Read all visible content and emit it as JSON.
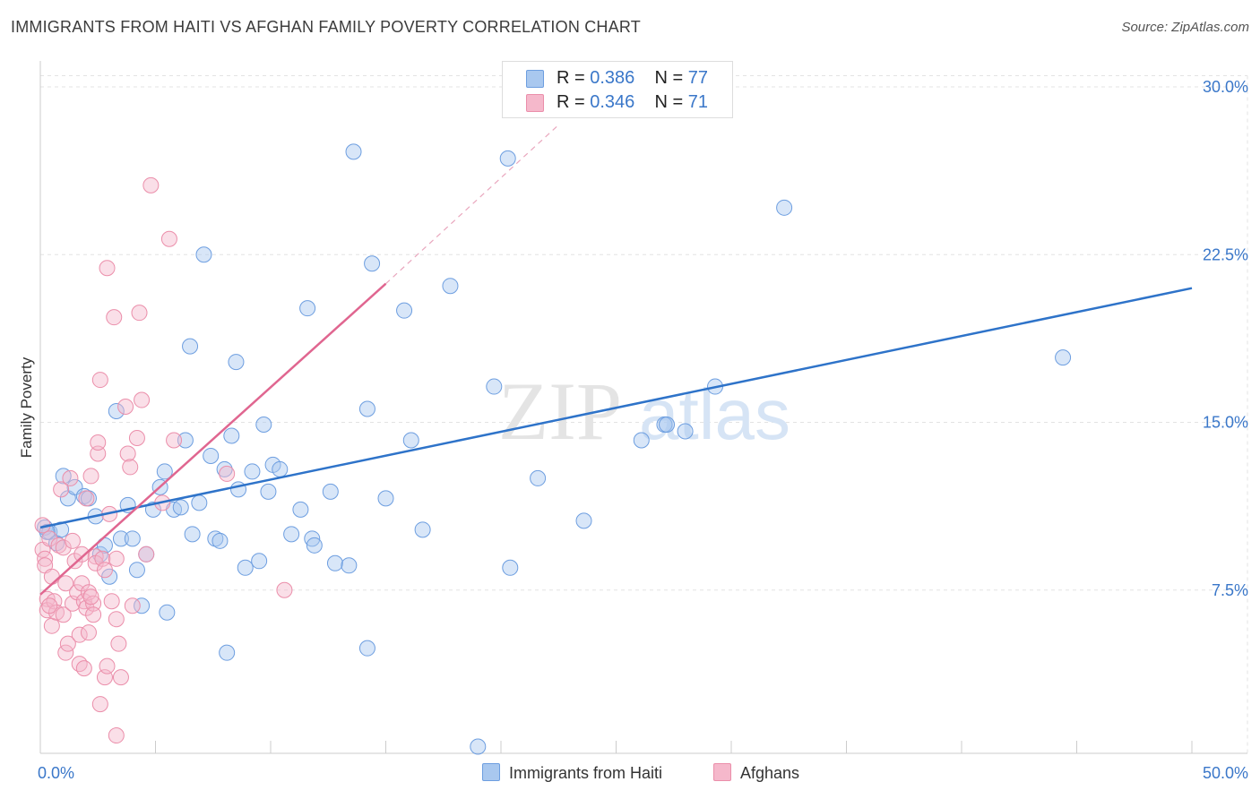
{
  "header": {
    "title": "IMMIGRANTS FROM HAITI VS AFGHAN FAMILY POVERTY CORRELATION CHART",
    "source": "Source: ZipAtlas.com"
  },
  "watermark": {
    "zip": "ZIP",
    "atlas": "atlas"
  },
  "legend_top": {
    "rows": [
      {
        "r_label": "R = ",
        "r_value": "0.386",
        "n_label": "N = ",
        "n_value": "77"
      },
      {
        "r_label": "R = ",
        "r_value": "0.346",
        "n_label": "N = ",
        "n_value": "71"
      }
    ]
  },
  "legend_bottom": {
    "series_1": "Immigrants from Haiti",
    "series_2": "Afghans"
  },
  "colors": {
    "haiti_fill": "#a9c8ef",
    "haiti_stroke": "#6d9ee0",
    "haiti_line": "#2e73c9",
    "afghan_fill": "#f5b8cb",
    "afghan_stroke": "#eb8eaa",
    "afghan_line": "#e06690",
    "tick_label": "#3a77c9",
    "grid": "#e3e3e3"
  },
  "chart_data": {
    "type": "scatter",
    "title": "IMMIGRANTS FROM HAITI VS AFGHAN FAMILY POVERTY CORRELATION CHART",
    "xlabel": "",
    "ylabel": "Family Poverty",
    "xlim": [
      0,
      50
    ],
    "ylim": [
      0,
      30.5
    ],
    "x_ticks": [
      0,
      5,
      10,
      15,
      20,
      25,
      30,
      35,
      40,
      45,
      50
    ],
    "x_tick_labels": {
      "0": "0.0%",
      "50": "50.0%"
    },
    "y_ticks": [
      7.5,
      15.0,
      22.5,
      30.0
    ],
    "y_tick_labels": [
      "7.5%",
      "15.0%",
      "22.5%",
      "30.0%"
    ],
    "grid": true,
    "series": [
      {
        "name": "Immigrants from Haiti",
        "R": 0.386,
        "N": 77,
        "trend": {
          "x": [
            0,
            50
          ],
          "y": [
            10.3,
            21.0
          ],
          "style": "solid"
        },
        "points": [
          [
            0.2,
            10.3
          ],
          [
            0.4,
            10.1
          ],
          [
            0.7,
            9.6
          ],
          [
            0.9,
            10.2
          ],
          [
            1.0,
            12.6
          ],
          [
            1.2,
            11.6
          ],
          [
            1.5,
            12.1
          ],
          [
            1.9,
            11.7
          ],
          [
            2.1,
            11.6
          ],
          [
            2.4,
            10.8
          ],
          [
            2.6,
            9.1
          ],
          [
            2.8,
            9.5
          ],
          [
            3.0,
            8.1
          ],
          [
            3.3,
            15.5
          ],
          [
            3.5,
            9.8
          ],
          [
            3.8,
            11.3
          ],
          [
            4.0,
            9.8
          ],
          [
            4.2,
            8.4
          ],
          [
            4.4,
            6.8
          ],
          [
            4.6,
            9.1
          ],
          [
            4.9,
            11.1
          ],
          [
            5.2,
            12.1
          ],
          [
            5.4,
            12.8
          ],
          [
            5.5,
            6.5
          ],
          [
            5.8,
            11.1
          ],
          [
            6.1,
            11.2
          ],
          [
            6.3,
            14.2
          ],
          [
            6.5,
            18.4
          ],
          [
            6.6,
            10.0
          ],
          [
            6.9,
            11.4
          ],
          [
            7.1,
            22.5
          ],
          [
            7.4,
            13.5
          ],
          [
            7.6,
            9.8
          ],
          [
            7.8,
            9.7
          ],
          [
            8.0,
            12.9
          ],
          [
            8.1,
            4.7
          ],
          [
            8.3,
            14.4
          ],
          [
            8.5,
            17.7
          ],
          [
            8.6,
            12.0
          ],
          [
            8.9,
            8.5
          ],
          [
            9.2,
            12.8
          ],
          [
            9.5,
            8.8
          ],
          [
            9.7,
            14.9
          ],
          [
            9.9,
            11.9
          ],
          [
            10.1,
            13.1
          ],
          [
            10.4,
            12.9
          ],
          [
            10.9,
            10.0
          ],
          [
            11.3,
            11.1
          ],
          [
            11.6,
            20.1
          ],
          [
            11.8,
            9.8
          ],
          [
            11.9,
            9.5
          ],
          [
            12.6,
            11.9
          ],
          [
            12.8,
            8.7
          ],
          [
            13.4,
            8.6
          ],
          [
            13.6,
            27.1
          ],
          [
            14.2,
            15.6
          ],
          [
            14.2,
            4.9
          ],
          [
            14.4,
            22.1
          ],
          [
            15.0,
            11.6
          ],
          [
            15.8,
            20.0
          ],
          [
            16.1,
            14.2
          ],
          [
            16.6,
            10.2
          ],
          [
            17.8,
            21.1
          ],
          [
            19.0,
            0.5
          ],
          [
            19.7,
            16.6
          ],
          [
            20.3,
            26.8
          ],
          [
            20.4,
            8.5
          ],
          [
            21.6,
            12.5
          ],
          [
            23.6,
            10.6
          ],
          [
            26.1,
            14.2
          ],
          [
            27.1,
            14.9
          ],
          [
            27.2,
            14.9
          ],
          [
            28.0,
            14.6
          ],
          [
            29.3,
            16.6
          ],
          [
            32.3,
            24.6
          ],
          [
            44.4,
            17.9
          ],
          [
            0.3,
            10.1
          ]
        ]
      },
      {
        "name": "Afghans",
        "R": 0.346,
        "N": 71,
        "trend": {
          "x": [
            0,
            15
          ],
          "y": [
            7.3,
            21.2
          ],
          "style": "solid",
          "dashed_extension": {
            "x": [
              15,
              22.5
            ],
            "y": [
              21.2,
              28.3
            ]
          }
        },
        "points": [
          [
            0.1,
            10.4
          ],
          [
            0.1,
            9.3
          ],
          [
            0.2,
            8.9
          ],
          [
            0.2,
            8.6
          ],
          [
            0.3,
            7.1
          ],
          [
            0.3,
            6.6
          ],
          [
            0.4,
            9.8
          ],
          [
            0.5,
            8.1
          ],
          [
            0.5,
            5.9
          ],
          [
            0.6,
            7.0
          ],
          [
            0.7,
            6.5
          ],
          [
            0.8,
            9.5
          ],
          [
            0.9,
            12.0
          ],
          [
            1.0,
            9.4
          ],
          [
            1.0,
            6.4
          ],
          [
            1.1,
            7.8
          ],
          [
            1.1,
            4.7
          ],
          [
            1.2,
            5.1
          ],
          [
            1.3,
            12.5
          ],
          [
            1.4,
            9.7
          ],
          [
            1.4,
            6.9
          ],
          [
            1.5,
            8.8
          ],
          [
            1.6,
            7.4
          ],
          [
            1.7,
            5.5
          ],
          [
            1.7,
            4.2
          ],
          [
            1.8,
            9.1
          ],
          [
            1.8,
            7.8
          ],
          [
            1.9,
            7.0
          ],
          [
            1.9,
            4.0
          ],
          [
            2.0,
            11.6
          ],
          [
            2.0,
            6.7
          ],
          [
            2.1,
            5.6
          ],
          [
            2.1,
            7.4
          ],
          [
            2.2,
            12.6
          ],
          [
            2.3,
            6.9
          ],
          [
            2.3,
            6.4
          ],
          [
            2.4,
            9.0
          ],
          [
            2.4,
            8.7
          ],
          [
            2.5,
            13.6
          ],
          [
            2.5,
            14.1
          ],
          [
            2.6,
            16.9
          ],
          [
            2.6,
            2.4
          ],
          [
            2.7,
            8.9
          ],
          [
            2.8,
            3.6
          ],
          [
            2.8,
            8.4
          ],
          [
            2.9,
            21.9
          ],
          [
            2.9,
            4.1
          ],
          [
            3.0,
            10.9
          ],
          [
            3.1,
            7.0
          ],
          [
            3.2,
            19.7
          ],
          [
            3.3,
            8.9
          ],
          [
            3.3,
            6.2
          ],
          [
            3.4,
            5.1
          ],
          [
            3.5,
            3.6
          ],
          [
            3.7,
            15.7
          ],
          [
            3.8,
            13.6
          ],
          [
            3.9,
            13.0
          ],
          [
            4.0,
            6.8
          ],
          [
            4.2,
            14.3
          ],
          [
            4.3,
            19.9
          ],
          [
            4.4,
            16.0
          ],
          [
            4.6,
            9.1
          ],
          [
            4.8,
            25.6
          ],
          [
            5.3,
            11.4
          ],
          [
            5.6,
            23.2
          ],
          [
            5.8,
            14.2
          ],
          [
            8.1,
            12.7
          ],
          [
            10.6,
            7.5
          ],
          [
            3.3,
            1.0
          ],
          [
            0.4,
            6.8
          ],
          [
            2.2,
            7.2
          ]
        ]
      }
    ]
  }
}
